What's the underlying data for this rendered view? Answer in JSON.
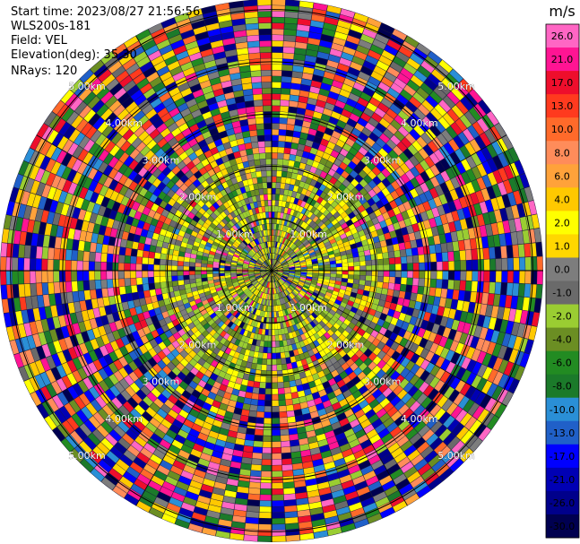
{
  "header": {
    "start_time": "Start time: 2023/08/27 21:56:56",
    "instrument": "WLS200s-181",
    "field": "Field: VEL",
    "elevation": "Elevation(deg): 35.30",
    "nrays": "NRays: 120"
  },
  "colorbar": {
    "unit": "m/s",
    "ticks": [
      "26.0",
      "21.0",
      "17.0",
      "13.0",
      "10.0",
      "8.0",
      "6.0",
      "4.0",
      "2.0",
      "1.0",
      "0.0",
      "-1.0",
      "-2.0",
      "-4.0",
      "-6.0",
      "-8.0",
      "-10.0",
      "-13.0",
      "-17.0",
      "-21.0",
      "-26.0",
      "-30.0"
    ],
    "colors": [
      "#ff66c4",
      "#ff1493",
      "#ee0e2c",
      "#ff3a1e",
      "#ff6a2a",
      "#ff8c5a",
      "#ffa23a",
      "#ffc800",
      "#ffff00",
      "#ffd700",
      "#7d7d7d",
      "#6a6a6a",
      "#9acd32",
      "#6b8e23",
      "#228b22",
      "#1b7a2a",
      "#2a8fd6",
      "#2060c8",
      "#0000ff",
      "#0000b4",
      "#00008b",
      "#000050"
    ]
  },
  "chart_data": {
    "type": "ppi",
    "field": "VEL",
    "units": "m/s",
    "range_rings_km": [
      1,
      2,
      3,
      4,
      5
    ],
    "ring_labels": [
      "1.00km",
      "2.00km",
      "3.00km",
      "4.00km",
      "5.00km"
    ],
    "rays": 120,
    "elevation_deg": 35.3,
    "vmin": -30.0,
    "vmax": 26.0
  }
}
